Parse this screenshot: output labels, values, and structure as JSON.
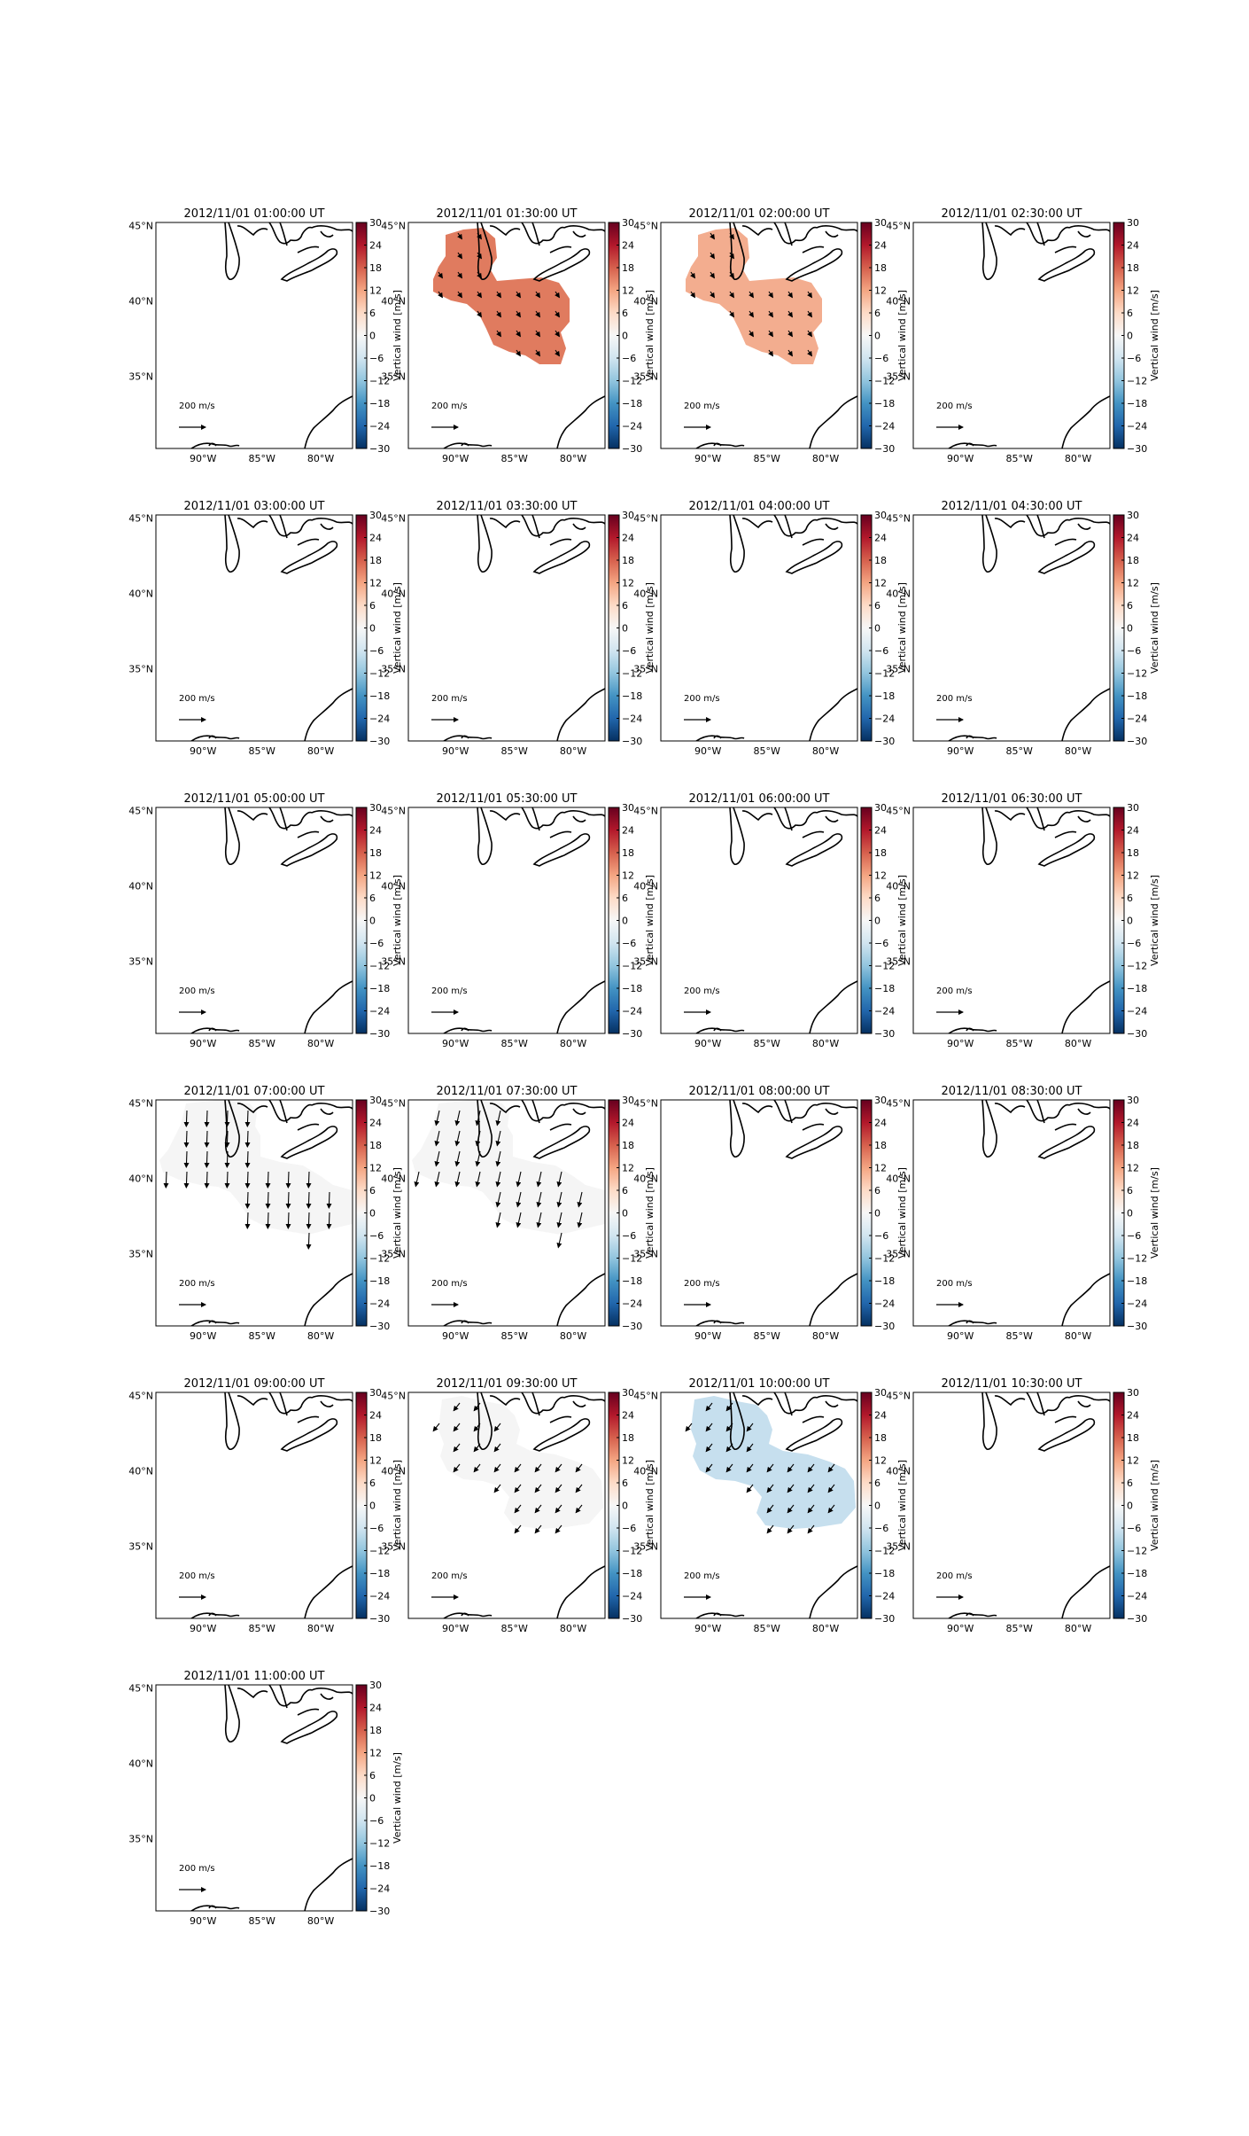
{
  "figure": {
    "colorbar_label": "Vertical wind [m/s]",
    "colorbar_ticks": [
      -30,
      -24,
      -18,
      -12,
      -6,
      0,
      6,
      12,
      18,
      24,
      30
    ],
    "colorbar_range": [
      -30,
      30
    ],
    "lat_ticks": [
      "45°N",
      "40°N",
      "35°N"
    ],
    "lon_ticks": [
      "90°W",
      "85°W",
      "80°W"
    ],
    "quiver_key_label": "200 m/s",
    "colormap": "RdBu_r",
    "background": "#ffffff",
    "coastline_color": "#000000",
    "arrow_color": "#000000"
  },
  "chart_data": [
    {
      "type": "heatmap",
      "title": "2012/11/01 01:00:00 UT",
      "vertical_wind": null,
      "arrows": "none"
    },
    {
      "type": "heatmap",
      "title": "2012/11/01 01:30:00 UT",
      "vertical_wind": 14,
      "fill": "#e07b5f",
      "arrows": "south-east",
      "region": "west"
    },
    {
      "type": "heatmap",
      "title": "2012/11/01 02:00:00 UT",
      "vertical_wind": 7,
      "fill": "#f3ad8f",
      "arrows": "south-east",
      "region": "west"
    },
    {
      "type": "heatmap",
      "title": "2012/11/01 02:30:00 UT",
      "vertical_wind": null,
      "arrows": "none"
    },
    {
      "type": "heatmap",
      "title": "2012/11/01 03:00:00 UT",
      "vertical_wind": null,
      "arrows": "none"
    },
    {
      "type": "heatmap",
      "title": "2012/11/01 03:30:00 UT",
      "vertical_wind": null,
      "arrows": "none"
    },
    {
      "type": "heatmap",
      "title": "2012/11/01 04:00:00 UT",
      "vertical_wind": null,
      "arrows": "none"
    },
    {
      "type": "heatmap",
      "title": "2012/11/01 04:30:00 UT",
      "vertical_wind": null,
      "arrows": "none"
    },
    {
      "type": "heatmap",
      "title": "2012/11/01 05:00:00 UT",
      "vertical_wind": null,
      "arrows": "none"
    },
    {
      "type": "heatmap",
      "title": "2012/11/01 05:30:00 UT",
      "vertical_wind": null,
      "arrows": "none"
    },
    {
      "type": "heatmap",
      "title": "2012/11/01 06:00:00 UT",
      "vertical_wind": null,
      "arrows": "none"
    },
    {
      "type": "heatmap",
      "title": "2012/11/01 06:30:00 UT",
      "vertical_wind": null,
      "arrows": "none"
    },
    {
      "type": "heatmap",
      "title": "2012/11/01 07:00:00 UT",
      "vertical_wind": 0,
      "fill": "#f5f5f5",
      "arrows": "south",
      "region": "central"
    },
    {
      "type": "heatmap",
      "title": "2012/11/01 07:30:00 UT",
      "vertical_wind": 0,
      "fill": "#f5f5f5",
      "arrows": "south-southwest",
      "region": "central"
    },
    {
      "type": "heatmap",
      "title": "2012/11/01 08:00:00 UT",
      "vertical_wind": null,
      "arrows": "none"
    },
    {
      "type": "heatmap",
      "title": "2012/11/01 08:30:00 UT",
      "vertical_wind": null,
      "arrows": "none"
    },
    {
      "type": "heatmap",
      "title": "2012/11/01 09:00:00 UT",
      "vertical_wind": null,
      "arrows": "none"
    },
    {
      "type": "heatmap",
      "title": "2012/11/01 09:30:00 UT",
      "vertical_wind": 0,
      "fill": "#f5f5f5",
      "arrows": "south-west",
      "region": "east"
    },
    {
      "type": "heatmap",
      "title": "2012/11/01 10:00:00 UT",
      "vertical_wind": -6,
      "fill": "#c6dfee",
      "arrows": "south-west",
      "region": "east"
    },
    {
      "type": "heatmap",
      "title": "2012/11/01 10:30:00 UT",
      "vertical_wind": null,
      "arrows": "none"
    },
    {
      "type": "heatmap",
      "title": "2012/11/01 11:00:00 UT",
      "vertical_wind": null,
      "arrows": "none"
    }
  ]
}
